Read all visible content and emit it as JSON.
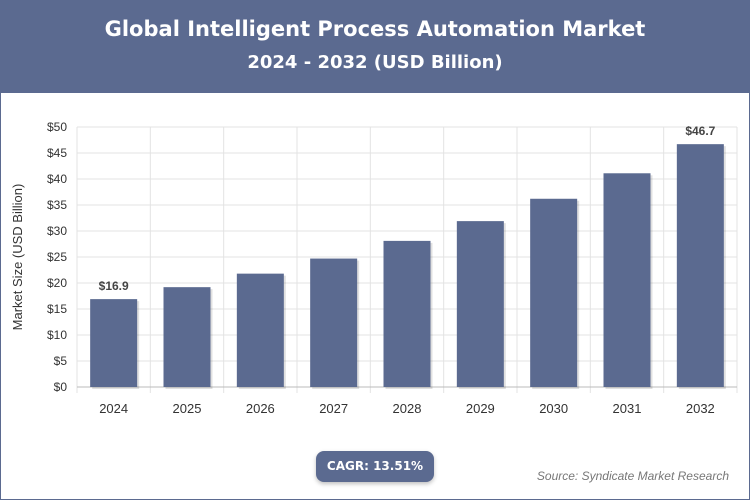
{
  "header": {
    "title": "Global Intelligent Process Automation Market",
    "subtitle": "2024 - 2032 (USD Billion)"
  },
  "footer": {
    "cagr": "CAGR: 13.51%",
    "source": "Source: Syndicate Market Research"
  },
  "colors": {
    "header_bg": "#5b6a90",
    "bar": "#5b6a90",
    "grid": "#e3e3e3",
    "axis_text": "#333333"
  },
  "chart_data": {
    "type": "bar",
    "categories": [
      "2024",
      "2025",
      "2026",
      "2027",
      "2028",
      "2029",
      "2030",
      "2031",
      "2032"
    ],
    "values": [
      16.9,
      19.2,
      21.8,
      24.7,
      28.1,
      31.9,
      36.2,
      41.1,
      46.7
    ],
    "data_labels": {
      "0": "$16.9",
      "8": "$46.7"
    },
    "title": "Global Intelligent Process Automation Market",
    "subtitle": "2024 - 2032 (USD Billion)",
    "xlabel": "",
    "ylabel": "Market Size (USD Billion)",
    "ylim": [
      0,
      50
    ],
    "yticks": [
      0,
      5,
      10,
      15,
      20,
      25,
      30,
      35,
      40,
      45,
      50
    ],
    "ytick_labels": [
      "$0",
      "$5",
      "$10",
      "$15",
      "$20",
      "$25",
      "$30",
      "$35",
      "$40",
      "$45",
      "$50"
    ],
    "grid": true,
    "legend": "none"
  }
}
